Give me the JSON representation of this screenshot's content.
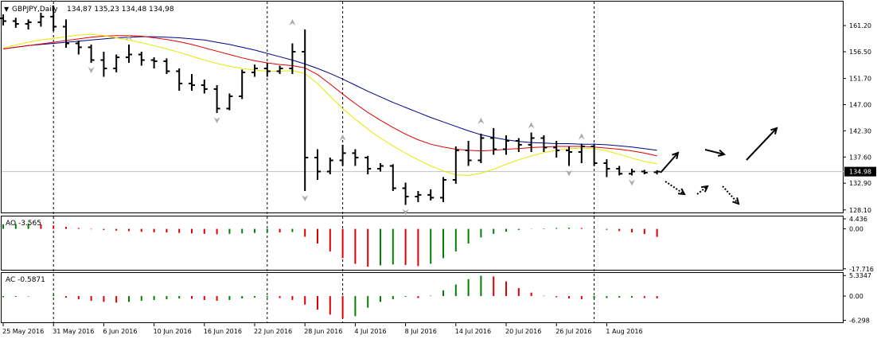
{
  "header": {
    "symbol_timeframe": "GBPJPY,Daily",
    "ohlc": "134,87 135,23 134,48 134,98",
    "menu_glyph": "▼"
  },
  "colors": {
    "ma_fast": "#e8e800",
    "ma_mid": "#e00000",
    "ma_slow": "#00008b",
    "bar": "#000000",
    "osc_up": "#008000",
    "osc_down": "#e00000",
    "fractal": "#a9a9a9",
    "grid_separator": "#000000"
  },
  "chart_data": [
    {
      "type": "ohlc",
      "title": "GBPJPY,Daily",
      "x_labels": [
        "25 May 2016",
        "31 May 2016",
        "6 Jun 2016",
        "10 Jun 2016",
        "16 Jun 2016",
        "22 Jun 2016",
        "28 Jun 2016",
        "4 Jul 2016",
        "8 Jul 2016",
        "14 Jul 2016",
        "20 Jul 2016",
        "26 Jul 2016",
        "1 Aug 2016"
      ],
      "x_label_bar_index": [
        0,
        4,
        8,
        12,
        16,
        20,
        24,
        28,
        32,
        36,
        40,
        44,
        48
      ],
      "y_ticks": [
        161.2,
        156.5,
        151.7,
        147.0,
        142.3,
        137.6,
        132.9,
        128.1
      ],
      "y_tick_labels": [
        "161.20",
        "156.50",
        "151.70",
        "147.00",
        "142.30",
        "137.60",
        "132.90",
        "128.10"
      ],
      "ylim": [
        127.5,
        165.5
      ],
      "current_price_label": "134.98",
      "current_price": 134.98,
      "period_separators_bar_index": [
        4,
        21,
        27,
        47
      ],
      "bars": [
        [
          162.5,
          163.2,
          161.2,
          162.0
        ],
        [
          162.0,
          162.6,
          160.8,
          161.5
        ],
        [
          161.5,
          162.3,
          160.5,
          161.8
        ],
        [
          161.8,
          163.5,
          161.0,
          162.8
        ],
        [
          162.8,
          164.8,
          160.2,
          161.0
        ],
        [
          161.0,
          162.3,
          157.2,
          158.0
        ],
        [
          158.0,
          158.5,
          156.0,
          157.3
        ],
        [
          157.3,
          157.8,
          154.5,
          155.0
        ],
        [
          155.0,
          156.5,
          152.0,
          153.5
        ],
        [
          153.5,
          156.0,
          152.8,
          155.5
        ],
        [
          155.5,
          157.8,
          154.5,
          156.0
        ],
        [
          156.0,
          156.5,
          154.0,
          155.0
        ],
        [
          155.0,
          155.5,
          153.5,
          154.8
        ],
        [
          154.8,
          155.3,
          152.5,
          153.0
        ],
        [
          153.0,
          153.5,
          149.5,
          150.8
        ],
        [
          150.8,
          152.5,
          149.5,
          150.5
        ],
        [
          150.5,
          151.5,
          149.0,
          149.8
        ],
        [
          149.8,
          150.5,
          145.5,
          146.3
        ],
        [
          146.3,
          149.0,
          146.0,
          148.5
        ],
        [
          148.5,
          153.3,
          148.0,
          152.8
        ],
        [
          152.8,
          154.2,
          152.0,
          153.5
        ],
        [
          153.5,
          154.5,
          152.0,
          153.0
        ],
        [
          153.0,
          154.0,
          152.5,
          153.5
        ],
        [
          153.5,
          158.0,
          152.5,
          156.5
        ],
        [
          156.5,
          160.5,
          131.5,
          137.5
        ],
        [
          137.5,
          139.0,
          133.5,
          135.0
        ],
        [
          135.0,
          137.5,
          134.5,
          137.0
        ],
        [
          137.0,
          139.8,
          136.0,
          138.3
        ],
        [
          138.3,
          139.0,
          136.0,
          137.5
        ],
        [
          137.5,
          137.8,
          134.5,
          135.5
        ],
        [
          135.5,
          136.5,
          135.0,
          136.0
        ],
        [
          136.0,
          136.3,
          131.5,
          132.0
        ],
        [
          132.0,
          133.0,
          129.0,
          130.5
        ],
        [
          130.5,
          131.5,
          129.5,
          130.8
        ],
        [
          130.8,
          131.8,
          129.8,
          130.3
        ],
        [
          130.3,
          134.0,
          129.5,
          133.5
        ],
        [
          133.5,
          139.5,
          132.8,
          138.8
        ],
        [
          138.8,
          140.5,
          136.0,
          137.0
        ],
        [
          137.0,
          141.8,
          136.5,
          141.0
        ],
        [
          141.0,
          142.8,
          138.0,
          139.0
        ],
        [
          139.0,
          141.5,
          138.0,
          140.5
        ],
        [
          140.5,
          141.0,
          138.5,
          139.8
        ],
        [
          139.8,
          142.0,
          138.5,
          141.0
        ],
        [
          141.0,
          141.5,
          138.5,
          139.3
        ],
        [
          139.3,
          140.5,
          137.5,
          138.8
        ],
        [
          138.8,
          139.5,
          136.0,
          138.5
        ],
        [
          138.5,
          140.0,
          136.5,
          139.5
        ],
        [
          139.5,
          140.0,
          136.0,
          136.5
        ],
        [
          136.5,
          137.2,
          134.0,
          135.5
        ],
        [
          135.5,
          136.0,
          134.3,
          134.6
        ],
        [
          134.6,
          135.5,
          134.3,
          135.0
        ],
        [
          135.0,
          135.3,
          134.5,
          134.8
        ],
        [
          134.87,
          135.23,
          134.48,
          134.98
        ]
      ],
      "ma_fast": [
        157.2,
        157.7,
        158.2,
        158.6,
        158.9,
        159.2,
        159.5,
        159.6,
        159.4,
        159.0,
        158.6,
        158.1,
        157.6,
        157.0,
        156.4,
        155.7,
        155.0,
        154.4,
        153.9,
        153.5,
        153.2,
        153.0,
        153.0,
        153.1,
        152.6,
        150.8,
        148.5,
        146.3,
        144.4,
        142.6,
        141.0,
        139.6,
        138.3,
        137.1,
        136.0,
        135.1,
        134.4,
        134.3,
        134.7,
        135.4,
        136.3,
        137.1,
        137.8,
        138.4,
        138.8,
        139.1,
        139.2,
        139.1,
        138.7,
        138.1,
        137.4,
        136.8,
        136.4
      ],
      "ma_mid": [
        157.0,
        157.3,
        157.6,
        157.9,
        158.2,
        158.5,
        158.8,
        159.1,
        159.3,
        159.4,
        159.4,
        159.3,
        159.0,
        158.7,
        158.3,
        157.8,
        157.2,
        156.6,
        156.0,
        155.4,
        154.9,
        154.5,
        154.2,
        154.0,
        153.6,
        152.4,
        150.7,
        148.9,
        147.2,
        145.6,
        144.2,
        142.9,
        141.7,
        140.7,
        139.9,
        139.4,
        139.0,
        138.8,
        138.7,
        138.8,
        139.0,
        139.1,
        139.3,
        139.4,
        139.5,
        139.5,
        139.5,
        139.4,
        139.2,
        139.0,
        138.7,
        138.3,
        137.8
      ],
      "ma_slow": [
        157.0,
        157.3,
        157.6,
        157.8,
        158.0,
        158.2,
        158.4,
        158.6,
        158.8,
        159.0,
        159.1,
        159.2,
        159.2,
        159.1,
        159.0,
        158.8,
        158.6,
        158.2,
        157.8,
        157.3,
        156.8,
        156.2,
        155.6,
        155.0,
        154.3,
        153.5,
        152.6,
        151.6,
        150.5,
        149.4,
        148.4,
        147.4,
        146.5,
        145.6,
        144.7,
        143.9,
        143.1,
        142.3,
        141.6,
        141.1,
        140.7,
        140.4,
        140.2,
        140.1,
        140.0,
        140.0,
        139.9,
        139.9,
        139.8,
        139.6,
        139.4,
        139.1,
        138.8
      ],
      "fractals_up": [
        [
          4,
          164.8
        ],
        [
          10,
          157.8
        ],
        [
          23,
          160.5
        ],
        [
          27,
          139.8
        ],
        [
          38,
          142.8
        ],
        [
          42,
          142.0
        ],
        [
          46,
          140.0
        ]
      ],
      "fractals_down": [
        [
          7,
          154.5
        ],
        [
          17,
          145.5
        ],
        [
          24,
          131.5
        ],
        [
          32,
          129.0
        ],
        [
          45,
          136.0
        ],
        [
          50,
          134.3
        ]
      ]
    },
    {
      "type": "bar",
      "title": "AO -3.565",
      "y_tick_labels": [
        "4.436",
        "0.00",
        "-17.716"
      ],
      "y_ticks": [
        4.436,
        0,
        -17.716
      ],
      "ylim": [
        -18.5,
        5.5
      ],
      "values": [
        2.0,
        2.2,
        2.4,
        2.0,
        1.5,
        0.9,
        0.4,
        -0.2,
        -0.5,
        -0.8,
        -1.0,
        -1.3,
        -1.5,
        -1.6,
        -1.8,
        -2.0,
        -2.2,
        -2.4,
        -2.2,
        -2.0,
        -1.8,
        -1.5,
        -1.6,
        -1.4,
        -3.5,
        -6.5,
        -10.0,
        -13.0,
        -15.5,
        -16.8,
        -16.2,
        -15.8,
        -16.0,
        -16.5,
        -15.5,
        -13.0,
        -10.0,
        -6.5,
        -3.8,
        -2.2,
        -1.2,
        -0.5,
        -0.1,
        0.2,
        0.4,
        0.5,
        0.4,
        0.2,
        -0.4,
        -1.0,
        -1.6,
        -2.3,
        -3.565
      ]
    },
    {
      "type": "bar",
      "title": "AC -0.5871",
      "y_tick_labels": [
        "5.3347",
        "0.00",
        "-6.298"
      ],
      "y_ticks": [
        5.3347,
        0,
        -6.298
      ],
      "ylim": [
        -7.0,
        6.0
      ],
      "values": [
        -0.3,
        -0.2,
        -0.1,
        0.0,
        0.3,
        -0.4,
        -0.8,
        -1.2,
        -1.5,
        -1.7,
        -1.5,
        -1.2,
        -1.0,
        -0.8,
        -0.6,
        -0.7,
        -1.0,
        -1.2,
        -1.0,
        -0.6,
        -0.4,
        -0.3,
        -0.5,
        -1.0,
        -2.2,
        -3.5,
        -4.8,
        -5.8,
        -5.2,
        -3.0,
        -1.5,
        -0.8,
        -0.2,
        -0.5,
        0.1,
        1.5,
        3.0,
        4.4,
        5.3,
        5.1,
        3.8,
        2.1,
        0.9,
        0.1,
        -0.3,
        -0.6,
        -0.8,
        -0.6,
        -0.5,
        -0.4,
        -0.4,
        -0.5,
        -0.5871
      ]
    }
  ]
}
